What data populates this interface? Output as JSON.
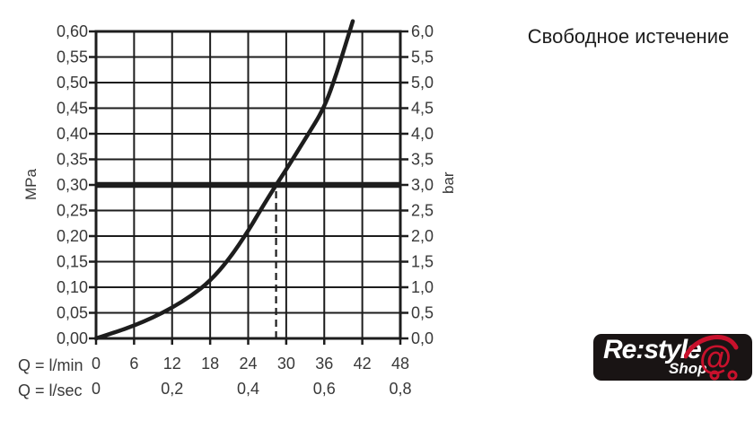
{
  "title": "Свободное истечение",
  "colors": {
    "ink": "#1d1d1d",
    "label": "#383838",
    "logo_bg": "#191414",
    "logo_red": "#c8112c",
    "logo_text": "#ffffff"
  },
  "chart_data": {
    "type": "line",
    "title": "Свободное истечение",
    "grid": true,
    "legend": "none",
    "x_axis": {
      "primary_label": "Q = l/min",
      "secondary_label": "Q = l/sec",
      "range_lmin": [
        0,
        48
      ],
      "primary_ticks": {
        "values_lmin": [
          0,
          6,
          12,
          18,
          24,
          30,
          36,
          42,
          48
        ],
        "labels": [
          "0",
          "6",
          "12",
          "18",
          "24",
          "30",
          "36",
          "42",
          "48"
        ]
      },
      "secondary_ticks": {
        "values_lsec": [
          0,
          0.2,
          0.4,
          0.6,
          0.8
        ],
        "labels": [
          "0",
          "0,2",
          "0,4",
          "0,6",
          "0,8"
        ]
      }
    },
    "y_axis_left": {
      "unit": "MPa",
      "range": [
        0,
        0.6
      ],
      "tick_step": 0.05,
      "tick_labels_bottom_to_top": [
        "0,00",
        "0,05",
        "0,10",
        "0,15",
        "0,20",
        "0,25",
        "0,30",
        "0,35",
        "0,40",
        "0,45",
        "0,50",
        "0,55",
        "0,60"
      ]
    },
    "y_axis_right": {
      "unit": "bar",
      "range": [
        0,
        6
      ],
      "tick_step": 0.5,
      "tick_labels_bottom_to_top": [
        "0,0",
        "0,5",
        "1,0",
        "1,5",
        "2,0",
        "2,5",
        "3,0",
        "3,5",
        "4,0",
        "4,5",
        "5,0",
        "5,5",
        "6,0"
      ]
    },
    "series": [
      {
        "name": "flow-pressure-curve",
        "points_lmin_mpa": [
          [
            0,
            0
          ],
          [
            3,
            0.012
          ],
          [
            6,
            0.025
          ],
          [
            9,
            0.041
          ],
          [
            12,
            0.06
          ],
          [
            15,
            0.083
          ],
          [
            18,
            0.112
          ],
          [
            21,
            0.155
          ],
          [
            24,
            0.21
          ],
          [
            26,
            0.252
          ],
          [
            28.4,
            0.3
          ],
          [
            30,
            0.33
          ],
          [
            33,
            0.39
          ],
          [
            36,
            0.45
          ],
          [
            38,
            0.52
          ],
          [
            39.5,
            0.58
          ],
          [
            40.5,
            0.62
          ]
        ]
      }
    ],
    "reference_line": {
      "orientation": "horizontal",
      "value_mpa": 0.3,
      "value_bar": 3.0
    },
    "marker_line": {
      "orientation": "vertical",
      "style": "dashed",
      "x_lmin": 28.4,
      "top_mpa": 0.3
    }
  },
  "logo": {
    "brand": "Re:style",
    "shop": "Shop",
    "at": "@"
  }
}
